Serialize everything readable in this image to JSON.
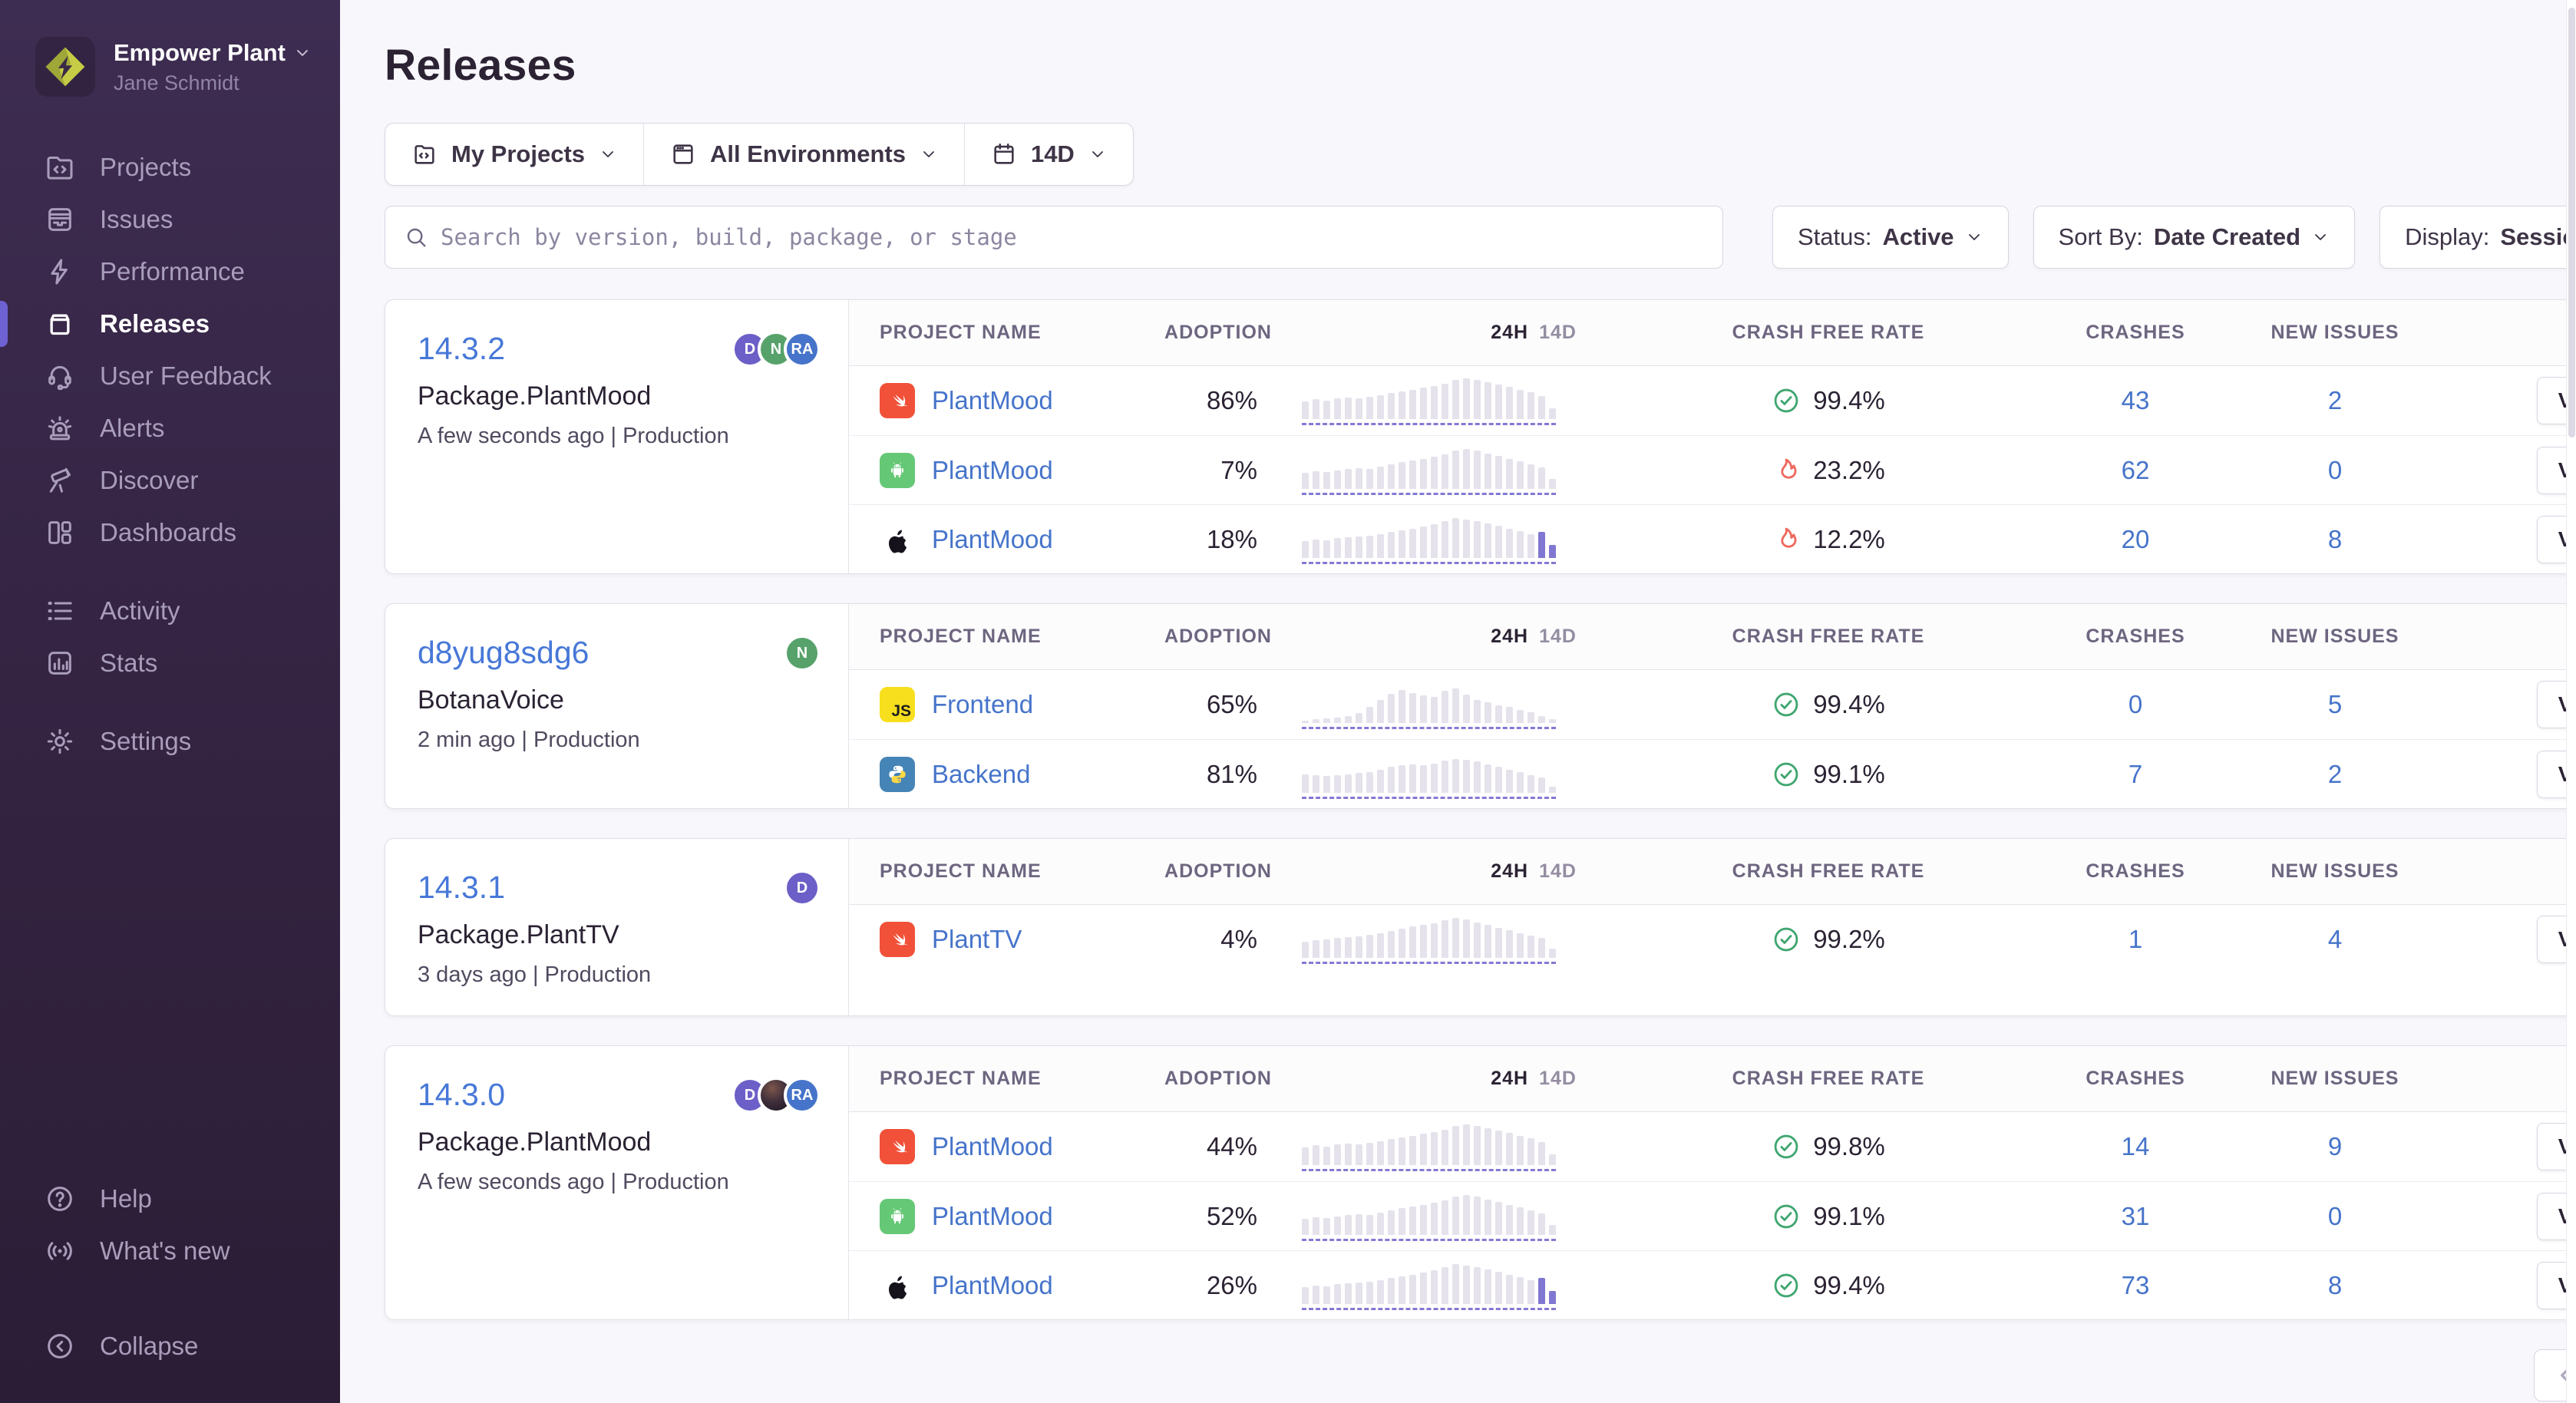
{
  "sidebar": {
    "org_name": "Empower Plant",
    "user_name": "Jane Schmidt",
    "nav_primary": [
      {
        "label": "Projects"
      },
      {
        "label": "Issues"
      },
      {
        "label": "Performance"
      },
      {
        "label": "Releases",
        "active": true
      },
      {
        "label": "User Feedback"
      },
      {
        "label": "Alerts"
      },
      {
        "label": "Discover"
      },
      {
        "label": "Dashboards"
      }
    ],
    "nav_secondary": [
      {
        "label": "Activity"
      },
      {
        "label": "Stats"
      }
    ],
    "nav_tertiary": [
      {
        "label": "Settings"
      }
    ],
    "nav_footer": [
      {
        "label": "Help"
      },
      {
        "label": "What's new"
      }
    ],
    "collapse_label": "Collapse"
  },
  "header": {
    "title": "Releases"
  },
  "filters": {
    "project": "My Projects",
    "environment": "All Environments",
    "date_range": "14D",
    "search_placeholder": "Search by version, build, package, or stage",
    "status_label": "Status:",
    "status_value": "Active",
    "sort_label": "Sort By:",
    "sort_value": "Date Created",
    "display_label": "Display:",
    "display_value": "Sessions"
  },
  "table_headers": {
    "project": "PROJECT NAME",
    "adoption": "ADOPTION",
    "range_24h": "24H",
    "range_14d": "14D",
    "crash_free": "CRASH FREE RATE",
    "crashes": "CRASHES",
    "new_issues": "NEW ISSUES"
  },
  "labels": {
    "view": "View"
  },
  "colors": {
    "accent_purple": "#6e61d2",
    "link_blue": "#4674ca",
    "healthy_green": "#3fa66f",
    "danger_red": "#ee6a5f"
  },
  "releases": [
    {
      "version": "14.3.2",
      "package": "Package.PlantMood",
      "meta": "A few seconds ago | Production",
      "avatars": [
        {
          "initials": "D",
          "color": "#6c5fc7"
        },
        {
          "initials": "N",
          "color": "#57a26b"
        },
        {
          "initials": "RA",
          "color": "#4674ca"
        }
      ],
      "rows": [
        {
          "platform": "swift",
          "project": "PlantMood",
          "adoption": "86%",
          "crash_free": "99.4%",
          "crash_status": "healthy",
          "crashes": "43",
          "new_issues": "2",
          "bars": [
            40,
            44,
            42,
            46,
            48,
            46,
            50,
            54,
            58,
            62,
            66,
            70,
            74,
            80,
            88,
            92,
            88,
            82,
            78,
            72,
            66,
            60,
            52,
            24
          ],
          "purple_tail": 0
        },
        {
          "platform": "android",
          "project": "PlantMood",
          "adoption": "7%",
          "crash_free": "23.2%",
          "crash_status": "danger",
          "crashes": "62",
          "new_issues": "0",
          "bars": [
            36,
            40,
            38,
            42,
            44,
            46,
            44,
            50,
            56,
            60,
            64,
            68,
            72,
            78,
            86,
            90,
            86,
            80,
            74,
            68,
            62,
            56,
            48,
            22
          ],
          "purple_tail": 0
        },
        {
          "platform": "apple",
          "project": "PlantMood",
          "adoption": "18%",
          "crash_free": "12.2%",
          "crash_status": "danger",
          "crashes": "20",
          "new_issues": "8",
          "bars": [
            38,
            42,
            40,
            44,
            46,
            48,
            50,
            54,
            58,
            62,
            66,
            70,
            76,
            82,
            90,
            86,
            82,
            78,
            72,
            66,
            60,
            54,
            58,
            30
          ],
          "purple_tail": 2
        }
      ]
    },
    {
      "version": "d8yug8sdg6",
      "package": "BotanaVoice",
      "meta": "2 min ago | Production",
      "avatars": [
        {
          "initials": "N",
          "color": "#57a26b"
        }
      ],
      "rows": [
        {
          "platform": "javascript",
          "project": "Frontend",
          "adoption": "65%",
          "crash_free": "99.4%",
          "crash_status": "healthy",
          "crashes": "0",
          "new_issues": "5",
          "bars": [
            6,
            8,
            10,
            12,
            16,
            22,
            36,
            52,
            66,
            74,
            68,
            62,
            58,
            72,
            78,
            64,
            52,
            46,
            40,
            36,
            30,
            24,
            16,
            8
          ],
          "purple_tail": 0
        },
        {
          "platform": "python",
          "project": "Backend",
          "adoption": "81%",
          "crash_free": "99.1%",
          "crash_status": "healthy",
          "crashes": "7",
          "new_issues": "2",
          "bars": [
            42,
            40,
            38,
            40,
            42,
            44,
            46,
            52,
            58,
            62,
            64,
            62,
            66,
            72,
            76,
            74,
            70,
            64,
            58,
            52,
            46,
            40,
            34,
            14
          ],
          "purple_tail": 0
        }
      ]
    },
    {
      "version": "14.3.1",
      "package": "Package.PlantTV",
      "meta": "3 days ago | Production",
      "avatars": [
        {
          "initials": "D",
          "color": "#6c5fc7"
        }
      ],
      "rows": [
        {
          "platform": "swift",
          "project": "PlantTV",
          "adoption": "4%",
          "crash_free": "99.2%",
          "crash_status": "healthy",
          "crashes": "1",
          "new_issues": "4",
          "bars": [
            36,
            40,
            42,
            44,
            46,
            48,
            52,
            56,
            60,
            66,
            70,
            74,
            78,
            84,
            90,
            86,
            80,
            74,
            68,
            62,
            56,
            50,
            44,
            20
          ],
          "purple_tail": 0
        }
      ]
    },
    {
      "version": "14.3.0",
      "package": "Package.PlantMood",
      "meta": "A few seconds ago | Production",
      "avatars": [
        {
          "initials": "D",
          "color": "#6c5fc7"
        },
        {
          "photo": true
        },
        {
          "initials": "RA",
          "color": "#4674ca"
        }
      ],
      "rows": [
        {
          "platform": "swift",
          "project": "PlantMood",
          "adoption": "44%",
          "crash_free": "99.8%",
          "crash_status": "healthy",
          "crashes": "14",
          "new_issues": "9",
          "bars": [
            40,
            44,
            42,
            46,
            48,
            46,
            50,
            54,
            58,
            62,
            66,
            70,
            74,
            80,
            88,
            92,
            88,
            82,
            78,
            72,
            66,
            60,
            52,
            24
          ],
          "purple_tail": 0
        },
        {
          "platform": "android",
          "project": "PlantMood",
          "adoption": "52%",
          "crash_free": "99.1%",
          "crash_status": "healthy",
          "crashes": "31",
          "new_issues": "0",
          "bars": [
            36,
            40,
            38,
            42,
            44,
            46,
            44,
            50,
            56,
            60,
            64,
            68,
            72,
            78,
            86,
            90,
            86,
            80,
            74,
            68,
            62,
            56,
            48,
            22
          ],
          "purple_tail": 0
        },
        {
          "platform": "apple",
          "project": "PlantMood",
          "adoption": "26%",
          "crash_free": "99.4%",
          "crash_status": "healthy",
          "crashes": "73",
          "new_issues": "8",
          "bars": [
            38,
            42,
            40,
            44,
            46,
            48,
            50,
            54,
            58,
            62,
            66,
            70,
            76,
            82,
            90,
            86,
            82,
            78,
            72,
            66,
            60,
            54,
            58,
            30
          ],
          "purple_tail": 2
        }
      ]
    }
  ]
}
